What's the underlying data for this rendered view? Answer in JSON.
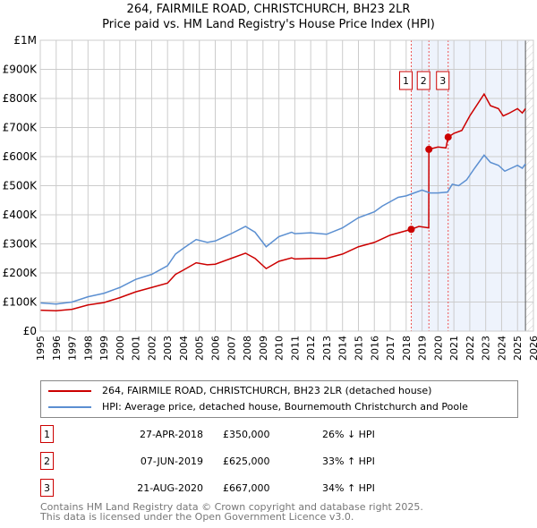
{
  "title": "264, FAIRMILE ROAD, CHRISTCHURCH, BH23 2LR",
  "subtitle": "Price paid vs. HM Land Registry's House Price Index (HPI)",
  "colors": {
    "property": "#cc0000",
    "hpi": "#5b8fd1"
  },
  "chart_data": {
    "type": "line",
    "title": "264, FAIRMILE ROAD, CHRISTCHURCH, BH23 2LR",
    "xlim": [
      1995,
      2026
    ],
    "ylim": [
      0,
      1000000
    ],
    "x_ticks": [
      "1995",
      "1996",
      "1997",
      "1998",
      "1999",
      "2000",
      "2001",
      "2002",
      "2003",
      "2004",
      "2005",
      "2006",
      "2007",
      "2008",
      "2009",
      "2010",
      "2011",
      "2012",
      "2013",
      "2014",
      "2015",
      "2016",
      "2017",
      "2018",
      "2019",
      "2020",
      "2021",
      "2022",
      "2023",
      "2024",
      "2025",
      "2026"
    ],
    "y_ticks": [
      {
        "v": 0,
        "label": "£0"
      },
      {
        "v": 100000,
        "label": "£100K"
      },
      {
        "v": 200000,
        "label": "£200K"
      },
      {
        "v": 300000,
        "label": "£300K"
      },
      {
        "v": 400000,
        "label": "£400K"
      },
      {
        "v": 500000,
        "label": "£500K"
      },
      {
        "v": 600000,
        "label": "£600K"
      },
      {
        "v": 700000,
        "label": "£700K"
      },
      {
        "v": 800000,
        "label": "£800K"
      },
      {
        "v": 900000,
        "label": "£900K"
      },
      {
        "v": 1000000,
        "label": "£1M"
      }
    ],
    "series": [
      {
        "name": "264, FAIRMILE ROAD, CHRISTCHURCH, BH23 2LR (detached house)",
        "color": "#cc0000",
        "x": [
          1995,
          1996,
          1997,
          1998,
          1999,
          2000,
          2001,
          2002,
          2003,
          2003.5,
          2004,
          2004.8,
          2005.5,
          2006,
          2007,
          2007.9,
          2008.5,
          2009.2,
          2010,
          2010.8,
          2011,
          2012,
          2013,
          2014,
          2015,
          2016,
          2017,
          2018.32,
          2018.8,
          2019.42,
          2019.43,
          2020,
          2020.5,
          2020.64,
          2021,
          2021.5,
          2022,
          2022.9,
          2023.3,
          2023.8,
          2024.1,
          2024.5,
          2025,
          2025.3,
          2025.5
        ],
        "y": [
          72000,
          70000,
          75000,
          90000,
          98000,
          115000,
          135000,
          150000,
          165000,
          195000,
          210000,
          235000,
          228000,
          230000,
          250000,
          268000,
          250000,
          215000,
          240000,
          252000,
          248000,
          250000,
          250000,
          265000,
          290000,
          305000,
          330000,
          350000,
          360000,
          355000,
          625000,
          633000,
          630000,
          667000,
          680000,
          690000,
          740000,
          815000,
          775000,
          765000,
          740000,
          750000,
          765000,
          750000,
          765000
        ]
      },
      {
        "name": "HPI: Average price, detached house, Bournemouth Christchurch and Poole",
        "color": "#5b8fd1",
        "x": [
          1995,
          1996,
          1997,
          1998,
          1999,
          2000,
          2001,
          2002,
          2003,
          2003.5,
          2004,
          2004.8,
          2005.5,
          2006,
          2007,
          2007.9,
          2008.5,
          2009.2,
          2010,
          2010.8,
          2011,
          2012,
          2013,
          2014,
          2015,
          2016,
          2016.5,
          2017,
          2017.5,
          2018,
          2018.5,
          2019,
          2019.5,
          2020,
          2020.6,
          2020.9,
          2021.3,
          2021.8,
          2022.3,
          2022.9,
          2023.3,
          2023.8,
          2024.2,
          2024.6,
          2025,
          2025.3,
          2025.5
        ],
        "y": [
          97000,
          93000,
          100000,
          118000,
          130000,
          150000,
          178000,
          195000,
          225000,
          265000,
          285000,
          315000,
          305000,
          310000,
          335000,
          360000,
          340000,
          290000,
          325000,
          340000,
          335000,
          338000,
          333000,
          355000,
          390000,
          410000,
          430000,
          445000,
          460000,
          465000,
          475000,
          485000,
          475000,
          475000,
          478000,
          505000,
          500000,
          520000,
          560000,
          605000,
          580000,
          570000,
          550000,
          560000,
          570000,
          560000,
          575000
        ]
      }
    ],
    "sales": [
      {
        "n": "1",
        "x": 2018.32,
        "date": "27-APR-2018",
        "price": "£350,000",
        "value": 350000,
        "hpi": "26% ↓ HPI"
      },
      {
        "n": "2",
        "x": 2019.43,
        "date": "07-JUN-2019",
        "price": "£625,000",
        "value": 625000,
        "hpi": "33% ↑ HPI"
      },
      {
        "n": "3",
        "x": 2020.64,
        "date": "21-AUG-2020",
        "price": "£667,000",
        "value": 667000,
        "hpi": "34% ↑ HPI"
      }
    ],
    "data_end": 2025.5
  },
  "legend": {
    "property": "264, FAIRMILE ROAD, CHRISTCHURCH, BH23 2LR (detached house)",
    "hpi": "HPI: Average price, detached house, Bournemouth Christchurch and Poole"
  },
  "footer": [
    "Contains HM Land Registry data © Crown copyright and database right 2025.",
    "This data is licensed under the Open Government Licence v3.0."
  ]
}
